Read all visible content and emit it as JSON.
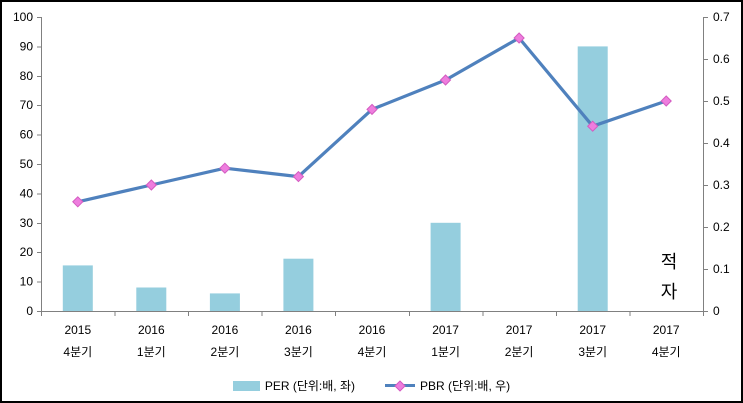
{
  "chart_data": {
    "type": "combo",
    "title": "",
    "legend_position": "bottom",
    "grid": false,
    "categories": [
      {
        "line1": "2015",
        "line2": "4분기"
      },
      {
        "line1": "2016",
        "line2": "1분기"
      },
      {
        "line1": "2016",
        "line2": "2분기"
      },
      {
        "line1": "2016",
        "line2": "3분기"
      },
      {
        "line1": "2016",
        "line2": "4분기"
      },
      {
        "line1": "2017",
        "line2": "1분기"
      },
      {
        "line1": "2017",
        "line2": "2분기"
      },
      {
        "line1": "2017",
        "line2": "3분기"
      },
      {
        "line1": "2017",
        "line2": "4분기"
      }
    ],
    "series": [
      {
        "name": "PER (단위:배, 좌)",
        "type": "bar",
        "axis": "left",
        "color": "#95CEDE",
        "values": [
          15.5,
          8,
          6,
          17.8,
          null,
          30,
          null,
          90,
          null
        ]
      },
      {
        "name": "PBR (단위:배, 우)",
        "type": "line",
        "axis": "right",
        "color": "#4F81BD",
        "marker": "diamond",
        "marker_fill": "#EE7DDE",
        "marker_stroke": "#D35BC0",
        "values": [
          0.26,
          0.3,
          0.34,
          0.32,
          0.48,
          0.55,
          0.65,
          0.44,
          0.5
        ]
      }
    ],
    "left_axis": {
      "min": 0,
      "max": 100,
      "step": 10,
      "tick_labels": [
        "0",
        "10",
        "20",
        "30",
        "40",
        "50",
        "60",
        "70",
        "80",
        "90",
        "100"
      ]
    },
    "right_axis": {
      "min": 0,
      "max": 0.7,
      "step": 0.1,
      "tick_labels": [
        "0",
        "0.1",
        "0.2",
        "0.3",
        "0.4",
        "0.5",
        "0.6",
        "0.7"
      ]
    },
    "annotation": {
      "text": "적자",
      "line1": "적",
      "line2": "자",
      "category": "2017 4분기"
    },
    "axis_color": "#808080"
  }
}
